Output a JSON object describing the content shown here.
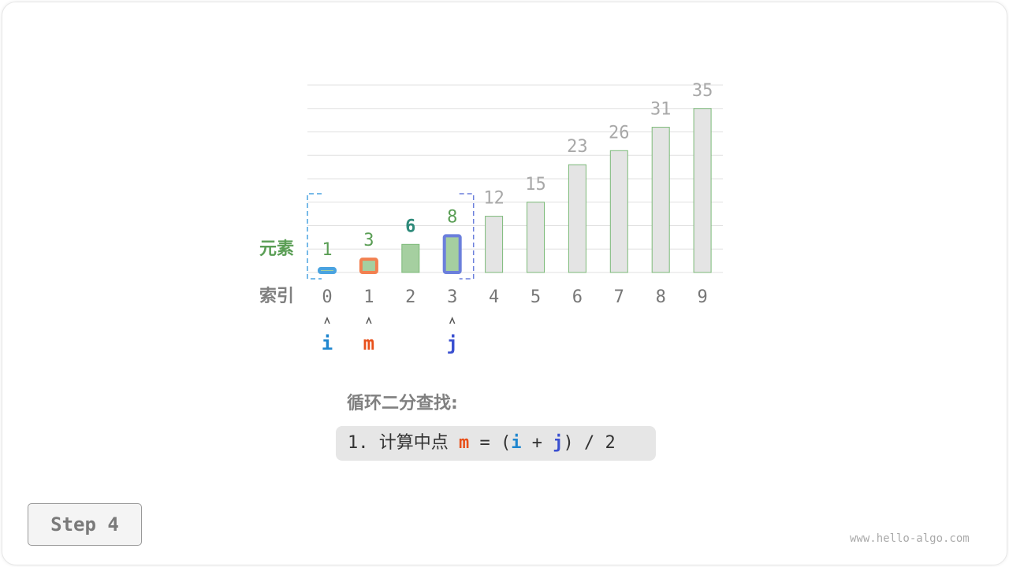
{
  "diagram": {
    "row_label_elements": "元素",
    "row_label_index": "索引",
    "indices": [
      "0",
      "1",
      "2",
      "3",
      "4",
      "5",
      "6",
      "7",
      "8",
      "9"
    ],
    "values": [
      1,
      3,
      6,
      8,
      12,
      15,
      23,
      26,
      31,
      35
    ],
    "value_labels": [
      "1",
      "3",
      "6",
      "8",
      "12",
      "15",
      "23",
      "26",
      "31",
      "35"
    ],
    "scale_max": 40,
    "search_range": [
      0,
      3
    ],
    "pointers": [
      {
        "name": "i",
        "index": 0,
        "color": "#1f86cf"
      },
      {
        "name": "m",
        "index": 1,
        "color": "#e8501a"
      },
      {
        "name": "j",
        "index": 3,
        "color": "#3a4fd0"
      }
    ],
    "colors": {
      "active_fill": "#a5cfa0",
      "inactive_fill": "#e4e4e4",
      "bar_stroke": "#7cba78",
      "i_border": "#4aa3e0",
      "m_border": "#f28050",
      "j_border": "#6b7fdc",
      "active_label": "#5a9e55",
      "inactive_label": "#a8a8a8",
      "highlight_label": "#2e8a7a"
    }
  },
  "text": {
    "title": "循环二分查找:",
    "formula_prefix": "1. 计算中点 ",
    "formula_m": "m",
    "formula_mid1": " = (",
    "formula_i": "i",
    "formula_mid2": " + ",
    "formula_j": "j",
    "formula_suffix": ") / 2"
  },
  "step_label": "Step 4",
  "watermark": "www.hello-algo.com"
}
